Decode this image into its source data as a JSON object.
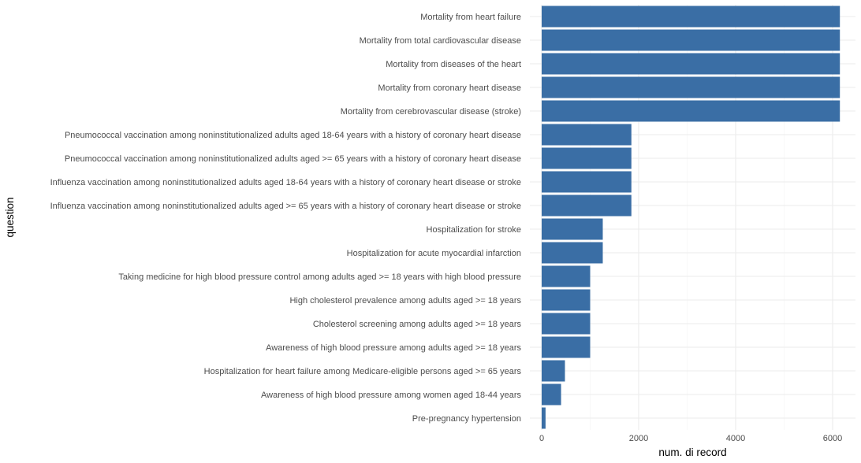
{
  "chart_data": {
    "type": "bar",
    "orientation": "horizontal",
    "xlabel": "num. di record",
    "ylabel": "question",
    "xlim": [
      0,
      6200
    ],
    "xticks": [
      0,
      2000,
      4000,
      6000
    ],
    "grid": true,
    "bar_color": "#3a6ea5",
    "categories": [
      "Mortality from heart failure",
      "Mortality from total cardiovascular disease",
      "Mortality from diseases of the heart",
      "Mortality from coronary heart disease",
      "Mortality from cerebrovascular disease (stroke)",
      "Pneumococcal vaccination among noninstitutionalized adults aged 18-64 years with a history of coronary heart disease",
      "Pneumococcal vaccination among noninstitutionalized adults aged >= 65 years with a history of coronary heart disease",
      "Influenza vaccination among noninstitutionalized adults aged 18-64 years with a history of coronary heart disease or stroke",
      "Influenza vaccination among noninstitutionalized adults aged >= 65 years with a history of coronary heart disease or stroke",
      "Hospitalization for stroke",
      "Hospitalization for acute myocardial infarction",
      "Taking medicine for high blood pressure control among adults aged >= 18 years with high blood pressure",
      "High cholesterol prevalence among adults aged >= 18 years",
      "Cholesterol screening among adults aged >= 18 years",
      "Awareness of high blood pressure among adults aged >= 18 years",
      "Hospitalization for heart failure among Medicare-eligible persons aged >= 65 years",
      "Awareness of high blood pressure among women aged 18-44 years",
      "Pre-pregnancy hypertension"
    ],
    "values": [
      6150,
      6150,
      6150,
      6150,
      6150,
      1850,
      1850,
      1850,
      1850,
      1260,
      1260,
      1000,
      1000,
      1000,
      1000,
      480,
      400,
      80
    ]
  }
}
